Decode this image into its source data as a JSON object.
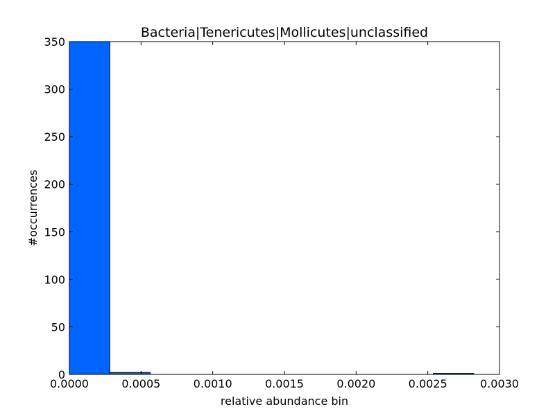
{
  "chart_data": {
    "type": "bar",
    "title": "Bacteria|Tenericutes|Mollicutes|unclassified",
    "xlabel": "relative abundance bin",
    "ylabel": "#occurrences",
    "xlim": [
      0,
      0.003
    ],
    "ylim": [
      0,
      350
    ],
    "xticks": [
      "0.0000",
      "0.0005",
      "0.0010",
      "0.0015",
      "0.0020",
      "0.0025",
      "0.0030"
    ],
    "yticks": [
      "0",
      "50",
      "100",
      "150",
      "200",
      "250",
      "300",
      "350"
    ],
    "bins": [
      {
        "start": 0.0,
        "end": 0.000282,
        "count": 350
      },
      {
        "start": 0.000282,
        "end": 0.000564,
        "count": 2
      },
      {
        "start": 0.000564,
        "end": 0.000846,
        "count": 0
      },
      {
        "start": 0.000846,
        "end": 0.001128,
        "count": 0
      },
      {
        "start": 0.001128,
        "end": 0.00141,
        "count": 0
      },
      {
        "start": 0.00141,
        "end": 0.001692,
        "count": 0
      },
      {
        "start": 0.001692,
        "end": 0.001974,
        "count": 0
      },
      {
        "start": 0.001974,
        "end": 0.002256,
        "count": 0
      },
      {
        "start": 0.002256,
        "end": 0.002538,
        "count": 0
      },
      {
        "start": 0.002538,
        "end": 0.00282,
        "count": 1
      }
    ],
    "bar_color": "#0066ff",
    "grid": false,
    "legend": "none"
  }
}
